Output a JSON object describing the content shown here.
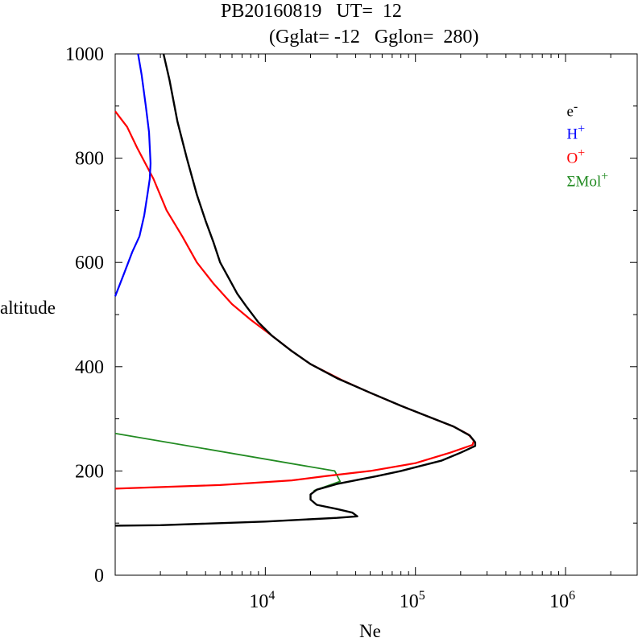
{
  "title_line1": "PB20160819   UT=  12",
  "title_line2": "(Gglat= -12   Gglon=  280)",
  "ylabel": "altitude",
  "xlabel": "Ne",
  "legend": {
    "e": {
      "base": "e",
      "sup": "-",
      "color": "#000000"
    },
    "h": {
      "base": "H",
      "sup": "+",
      "color": "#0000ff"
    },
    "o": {
      "base": "O",
      "sup": "+",
      "color": "#ff0000"
    },
    "mol": {
      "base": "ΣMol",
      "sup": "+",
      "color": "#228b22"
    }
  },
  "chart_data": {
    "type": "line",
    "x_scale": "log",
    "xlim": [
      1000,
      3000000
    ],
    "ylim": [
      0,
      1000
    ],
    "y_ticks": [
      "0",
      "200",
      "400",
      "600",
      "800",
      "1000"
    ],
    "x_ticks": [
      {
        "base": "10",
        "exp": "4"
      },
      {
        "base": "10",
        "exp": "5"
      },
      {
        "base": "10",
        "exp": "6"
      }
    ],
    "series": [
      {
        "name": "e-",
        "color": "#000000",
        "width": 2.4,
        "points": [
          [
            1000,
            95
          ],
          [
            2000,
            96
          ],
          [
            10000,
            103
          ],
          [
            30000,
            110
          ],
          [
            41000,
            113
          ],
          [
            38000,
            120
          ],
          [
            30000,
            127
          ],
          [
            22000,
            135
          ],
          [
            20000,
            145
          ],
          [
            20000,
            155
          ],
          [
            22000,
            164
          ],
          [
            30000,
            175
          ],
          [
            43000,
            184
          ],
          [
            55000,
            190
          ],
          [
            80000,
            200
          ],
          [
            150000,
            220
          ],
          [
            200000,
            235
          ],
          [
            250000,
            248
          ],
          [
            250000,
            255
          ],
          [
            230000,
            268
          ],
          [
            180000,
            285
          ],
          [
            120000,
            305
          ],
          [
            80000,
            325
          ],
          [
            50000,
            350
          ],
          [
            30000,
            378
          ],
          [
            20000,
            405
          ],
          [
            15000,
            430
          ],
          [
            11000,
            460
          ],
          [
            9000,
            485
          ],
          [
            7500,
            515
          ],
          [
            6500,
            540
          ],
          [
            5700,
            570
          ],
          [
            5000,
            600
          ],
          [
            4500,
            640
          ],
          [
            4000,
            680
          ],
          [
            3500,
            730
          ],
          [
            3000,
            800
          ],
          [
            2600,
            870
          ],
          [
            2300,
            950
          ],
          [
            2100,
            1000
          ]
        ]
      },
      {
        "name": "H+",
        "color": "#0000ff",
        "width": 2.2,
        "points": [
          [
            1000,
            535
          ],
          [
            1150,
            580
          ],
          [
            1300,
            620
          ],
          [
            1450,
            650
          ],
          [
            1560,
            690
          ],
          [
            1640,
            730
          ],
          [
            1700,
            760
          ],
          [
            1720,
            790
          ],
          [
            1680,
            850
          ],
          [
            1600,
            900
          ],
          [
            1500,
            960
          ],
          [
            1420,
            1000
          ]
        ]
      },
      {
        "name": "O+",
        "color": "#ff0000",
        "width": 2.2,
        "points": [
          [
            1000,
            166
          ],
          [
            5000,
            173
          ],
          [
            15000,
            182
          ],
          [
            25000,
            190
          ],
          [
            50000,
            200
          ],
          [
            100000,
            215
          ],
          [
            170000,
            235
          ],
          [
            240000,
            250
          ],
          [
            245000,
            258
          ],
          [
            225000,
            270
          ],
          [
            180000,
            285
          ],
          [
            120000,
            305
          ],
          [
            80000,
            325
          ],
          [
            50000,
            350
          ],
          [
            32000,
            375
          ],
          [
            20000,
            405
          ],
          [
            15000,
            430
          ],
          [
            11000,
            460
          ],
          [
            8000,
            490
          ],
          [
            6000,
            520
          ],
          [
            4500,
            560
          ],
          [
            3500,
            600
          ],
          [
            2800,
            650
          ],
          [
            2200,
            700
          ],
          [
            1800,
            760
          ],
          [
            1400,
            820
          ],
          [
            1200,
            860
          ],
          [
            1000,
            890
          ]
        ]
      },
      {
        "name": "ΣMol+",
        "color": "#228b22",
        "width": 1.8,
        "points": [
          [
            1000,
            272
          ],
          [
            29000,
            200
          ],
          [
            31500,
            180
          ],
          [
            21000,
            162
          ]
        ]
      }
    ]
  }
}
